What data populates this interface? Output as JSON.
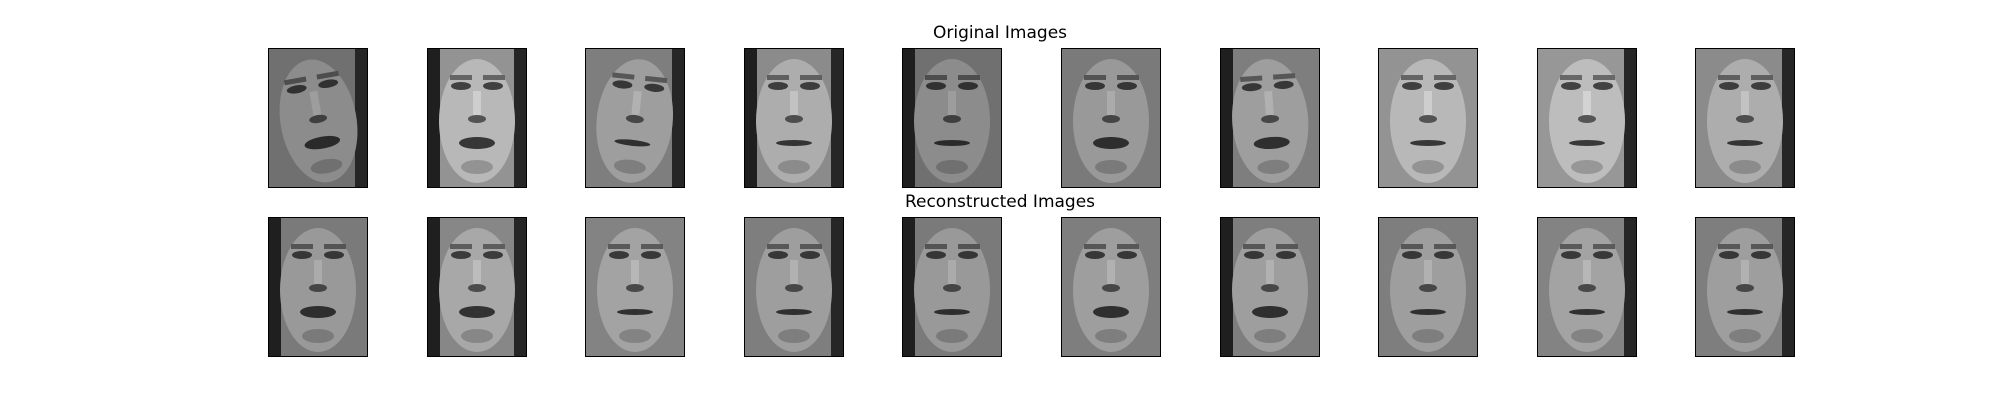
{
  "figure": {
    "rows": [
      {
        "id": "original",
        "title": "Original Images",
        "faces": [
          {
            "tone": 0.55,
            "tilt": -10,
            "mouth_open": 1,
            "side_shadow": "right"
          },
          {
            "tone": 0.72,
            "tilt": 0,
            "mouth_open": 1,
            "side_shadow": "both"
          },
          {
            "tone": 0.62,
            "tilt": 6,
            "mouth_open": 0,
            "side_shadow": "right"
          },
          {
            "tone": 0.68,
            "tilt": 0,
            "mouth_open": 0,
            "side_shadow": "both"
          },
          {
            "tone": 0.55,
            "tilt": 0,
            "mouth_open": 0,
            "side_shadow": "left"
          },
          {
            "tone": 0.6,
            "tilt": 0,
            "mouth_open": 1,
            "side_shadow": "none"
          },
          {
            "tone": 0.62,
            "tilt": -4,
            "mouth_open": 1,
            "side_shadow": "left"
          },
          {
            "tone": 0.72,
            "tilt": 0,
            "mouth_open": 0,
            "side_shadow": "none"
          },
          {
            "tone": 0.74,
            "tilt": 0,
            "mouth_open": 0,
            "side_shadow": "right"
          },
          {
            "tone": 0.68,
            "tilt": 0,
            "mouth_open": 0,
            "side_shadow": "right"
          }
        ]
      },
      {
        "id": "reconstructed",
        "title": "Reconstructed Images",
        "faces": [
          {
            "tone": 0.6,
            "tilt": 0,
            "mouth_open": 1,
            "side_shadow": "left"
          },
          {
            "tone": 0.66,
            "tilt": 0,
            "mouth_open": 1,
            "side_shadow": "both"
          },
          {
            "tone": 0.64,
            "tilt": 0,
            "mouth_open": 0,
            "side_shadow": "none"
          },
          {
            "tone": 0.62,
            "tilt": 0,
            "mouth_open": 0,
            "side_shadow": "right"
          },
          {
            "tone": 0.6,
            "tilt": 0,
            "mouth_open": 0,
            "side_shadow": "left"
          },
          {
            "tone": 0.62,
            "tilt": 0,
            "mouth_open": 1,
            "side_shadow": "none"
          },
          {
            "tone": 0.62,
            "tilt": 0,
            "mouth_open": 1,
            "side_shadow": "left"
          },
          {
            "tone": 0.62,
            "tilt": 0,
            "mouth_open": 0,
            "side_shadow": "none"
          },
          {
            "tone": 0.64,
            "tilt": 0,
            "mouth_open": 0,
            "side_shadow": "right"
          },
          {
            "tone": 0.62,
            "tilt": 0,
            "mouth_open": 0,
            "side_shadow": "right"
          }
        ]
      }
    ],
    "colors": {
      "background": "#ffffff",
      "frame": "#000000",
      "title_text": "#000000"
    }
  }
}
